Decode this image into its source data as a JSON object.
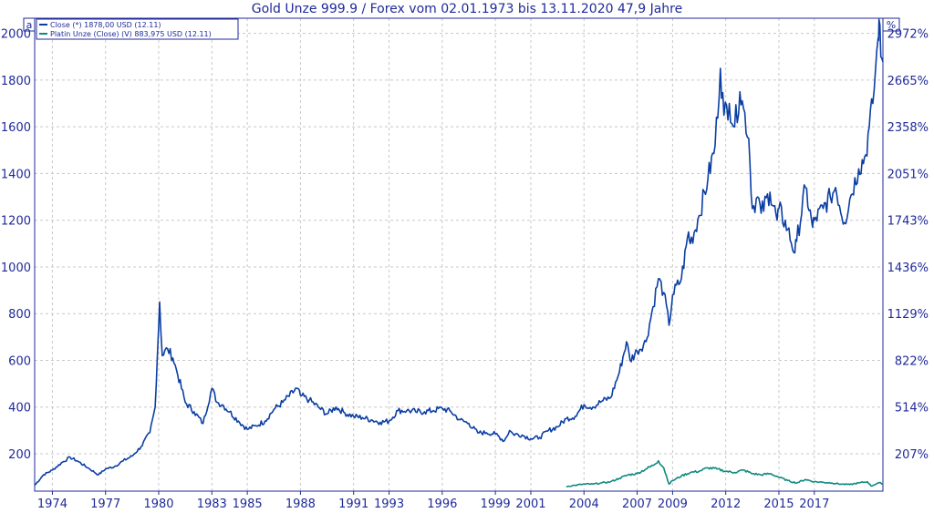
{
  "chart_data": {
    "type": "line",
    "title": "Gold Unze 999.9 / Forex vom 02.01.1973 bis 13.11.2020 47,9 Jahre",
    "left_corner_label": "a",
    "right_corner_label": "%",
    "x_ticks": [
      "1974",
      "1977",
      "1980",
      "1983",
      "1985",
      "1988",
      "1991",
      "1993",
      "1996",
      "1999",
      "2001",
      "2004",
      "2007",
      "2009",
      "2012",
      "2015",
      "2017"
    ],
    "y_ticks": [
      200,
      400,
      600,
      800,
      1000,
      1200,
      1400,
      1600,
      1800,
      2000
    ],
    "y2_ticks": [
      "207%",
      "514%",
      "822%",
      "1129%",
      "1436%",
      "1743%",
      "2051%",
      "2358%",
      "2665%",
      "2972%"
    ],
    "xlim": [
      1973.0,
      2020.87
    ],
    "ylim": [
      40,
      2065
    ],
    "grid": true,
    "legend_position": "top-left",
    "colors": {
      "gold": "#0b3ea3",
      "platinum": "#0f8a80",
      "axis": "#1f2a9a",
      "grid": "#c8c8c8"
    },
    "series": [
      {
        "name": "Close (*) 1878,00 USD (12.11)",
        "color": "#0b3ea3",
        "points": [
          [
            1973.0,
            65
          ],
          [
            1973.5,
            110
          ],
          [
            1974.0,
            130
          ],
          [
            1974.5,
            160
          ],
          [
            1975.0,
            185
          ],
          [
            1975.5,
            165
          ],
          [
            1976.0,
            140
          ],
          [
            1976.6,
            110
          ],
          [
            1977.0,
            135
          ],
          [
            1977.5,
            145
          ],
          [
            1978.0,
            170
          ],
          [
            1978.5,
            190
          ],
          [
            1979.0,
            230
          ],
          [
            1979.5,
            290
          ],
          [
            1979.8,
            400
          ],
          [
            1980.05,
            850
          ],
          [
            1980.2,
            620
          ],
          [
            1980.5,
            650
          ],
          [
            1980.8,
            610
          ],
          [
            1981.0,
            560
          ],
          [
            1981.5,
            420
          ],
          [
            1982.0,
            380
          ],
          [
            1982.5,
            330
          ],
          [
            1983.0,
            480
          ],
          [
            1983.3,
            420
          ],
          [
            1983.6,
            410
          ],
          [
            1984.0,
            380
          ],
          [
            1984.5,
            340
          ],
          [
            1985.0,
            305
          ],
          [
            1985.5,
            320
          ],
          [
            1986.0,
            340
          ],
          [
            1986.5,
            390
          ],
          [
            1987.0,
            420
          ],
          [
            1987.8,
            480
          ],
          [
            1988.0,
            450
          ],
          [
            1988.5,
            430
          ],
          [
            1989.0,
            400
          ],
          [
            1989.5,
            370
          ],
          [
            1990.0,
            400
          ],
          [
            1990.5,
            375
          ],
          [
            1991.0,
            360
          ],
          [
            1991.5,
            355
          ],
          [
            1992.0,
            345
          ],
          [
            1992.5,
            335
          ],
          [
            1993.0,
            340
          ],
          [
            1993.5,
            385
          ],
          [
            1994.0,
            385
          ],
          [
            1994.5,
            380
          ],
          [
            1995.0,
            380
          ],
          [
            1995.5,
            385
          ],
          [
            1996.0,
            395
          ],
          [
            1996.5,
            380
          ],
          [
            1997.0,
            345
          ],
          [
            1997.5,
            330
          ],
          [
            1998.0,
            290
          ],
          [
            1998.5,
            290
          ],
          [
            1999.0,
            285
          ],
          [
            1999.5,
            255
          ],
          [
            1999.8,
            300
          ],
          [
            2000.0,
            285
          ],
          [
            2000.5,
            280
          ],
          [
            2001.0,
            265
          ],
          [
            2001.5,
            270
          ],
          [
            2002.0,
            300
          ],
          [
            2002.5,
            315
          ],
          [
            2003.0,
            350
          ],
          [
            2003.5,
            360
          ],
          [
            2004.0,
            410
          ],
          [
            2004.5,
            400
          ],
          [
            2005.0,
            425
          ],
          [
            2005.5,
            440
          ],
          [
            2006.0,
            550
          ],
          [
            2006.4,
            680
          ],
          [
            2006.6,
            600
          ],
          [
            2007.0,
            640
          ],
          [
            2007.5,
            680
          ],
          [
            2007.9,
            830
          ],
          [
            2008.2,
            950
          ],
          [
            2008.5,
            890
          ],
          [
            2008.8,
            750
          ],
          [
            2009.0,
            880
          ],
          [
            2009.5,
            950
          ],
          [
            2009.9,
            1150
          ],
          [
            2010.0,
            1100
          ],
          [
            2010.5,
            1220
          ],
          [
            2011.0,
            1380
          ],
          [
            2011.4,
            1520
          ],
          [
            2011.7,
            1850
          ],
          [
            2011.9,
            1650
          ],
          [
            2012.2,
            1700
          ],
          [
            2012.5,
            1600
          ],
          [
            2012.8,
            1750
          ],
          [
            2013.0,
            1680
          ],
          [
            2013.3,
            1550
          ],
          [
            2013.5,
            1250
          ],
          [
            2013.8,
            1300
          ],
          [
            2014.0,
            1230
          ],
          [
            2014.5,
            1320
          ],
          [
            2014.9,
            1200
          ],
          [
            2015.0,
            1250
          ],
          [
            2015.5,
            1160
          ],
          [
            2015.9,
            1060
          ],
          [
            2016.0,
            1110
          ],
          [
            2016.5,
            1340
          ],
          [
            2016.9,
            1170
          ],
          [
            2017.0,
            1200
          ],
          [
            2017.5,
            1250
          ],
          [
            2017.9,
            1300
          ],
          [
            2018.2,
            1340
          ],
          [
            2018.7,
            1190
          ],
          [
            2019.0,
            1290
          ],
          [
            2019.5,
            1420
          ],
          [
            2019.9,
            1480
          ],
          [
            2020.1,
            1600
          ],
          [
            2020.3,
            1700
          ],
          [
            2020.6,
            1980
          ],
          [
            2020.65,
            2060
          ],
          [
            2020.75,
            1900
          ],
          [
            2020.87,
            1878
          ]
        ]
      },
      {
        "name": "Platin Unze (Close) (V) 883,975 USD (12.11)",
        "color": "#0f8a80",
        "points": [
          [
            2003.0,
            60
          ],
          [
            2003.5,
            65
          ],
          [
            2004.0,
            70
          ],
          [
            2004.5,
            70
          ],
          [
            2005.0,
            75
          ],
          [
            2005.5,
            80
          ],
          [
            2006.0,
            95
          ],
          [
            2006.5,
            110
          ],
          [
            2007.0,
            115
          ],
          [
            2007.5,
            135
          ],
          [
            2007.9,
            150
          ],
          [
            2008.2,
            170
          ],
          [
            2008.5,
            140
          ],
          [
            2008.8,
            70
          ],
          [
            2009.0,
            85
          ],
          [
            2009.5,
            105
          ],
          [
            2010.0,
            120
          ],
          [
            2010.5,
            125
          ],
          [
            2011.0,
            140
          ],
          [
            2011.5,
            135
          ],
          [
            2012.0,
            125
          ],
          [
            2012.5,
            120
          ],
          [
            2013.0,
            130
          ],
          [
            2013.5,
            115
          ],
          [
            2014.0,
            110
          ],
          [
            2014.5,
            115
          ],
          [
            2015.0,
            100
          ],
          [
            2015.5,
            85
          ],
          [
            2016.0,
            75
          ],
          [
            2016.5,
            90
          ],
          [
            2017.0,
            80
          ],
          [
            2017.5,
            78
          ],
          [
            2018.0,
            75
          ],
          [
            2018.5,
            70
          ],
          [
            2019.0,
            68
          ],
          [
            2019.5,
            75
          ],
          [
            2020.0,
            80
          ],
          [
            2020.2,
            62
          ],
          [
            2020.6,
            75
          ],
          [
            2020.87,
            72
          ]
        ]
      }
    ]
  }
}
